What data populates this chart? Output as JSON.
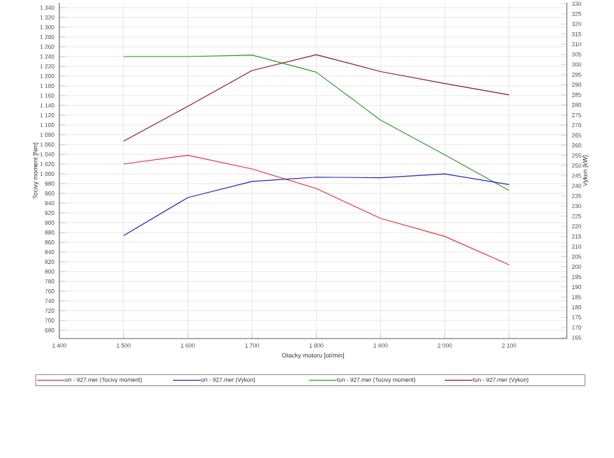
{
  "chart_data": {
    "type": "line",
    "xlabel": "Otacky motoru [ot/min]",
    "ylabel": "Tocivy moment [Nm]",
    "y2label": "Vykon [kW]",
    "x": [
      1500,
      1600,
      1700,
      1800,
      1900,
      2000,
      2100
    ],
    "series": [
      {
        "name": "ori - 927.mer  (Tocivy moment)",
        "color": "#e8303a",
        "values": [
          1020,
          1038,
          1010,
          970,
          909,
          872,
          814
        ]
      },
      {
        "name": "ori - 927.mer  (Vykon)",
        "color": "#2020d0",
        "axis": "y2",
        "values": [
          215.4,
          234.2,
          242.2,
          244.3,
          244,
          245.9,
          240.6
        ]
      },
      {
        "name": "tun - 927.mer  (Tocivy moment)",
        "color": "#2a9a2a",
        "values": [
          1240,
          1240,
          1243,
          1208,
          1110,
          1039,
          966
        ]
      },
      {
        "name": "tun - 927.mer  (Vykon)",
        "color": "#8b1a1a",
        "axis": "y2",
        "values": [
          262.1,
          279.3,
          297,
          304.8,
          296.5,
          290.6,
          285
        ]
      }
    ],
    "xlim": [
      1400,
      2190
    ],
    "xticks": [
      {
        "value": 1400,
        "label": "1 400"
      },
      {
        "value": 1500,
        "label": "1 500"
      },
      {
        "value": 1600,
        "label": "1 600"
      },
      {
        "value": 1700,
        "label": "1 700"
      },
      {
        "value": 1800,
        "label": "1 800"
      },
      {
        "value": 1900,
        "label": "1 900"
      },
      {
        "value": 2000,
        "label": "2 000"
      },
      {
        "value": 2100,
        "label": "2 100"
      }
    ],
    "ylim": [
      663,
      1350
    ],
    "yticks": [
      680,
      700,
      720,
      740,
      760,
      780,
      800,
      820,
      840,
      860,
      880,
      900,
      920,
      940,
      960,
      980,
      {
        "value": 1000,
        "label": "1 000"
      },
      {
        "value": 1020,
        "label": "1 020"
      },
      {
        "value": 1040,
        "label": "1 040"
      },
      {
        "value": 1060,
        "label": "1 060"
      },
      {
        "value": 1080,
        "label": "1 080"
      },
      {
        "value": 1100,
        "label": "1 100"
      },
      {
        "value": 1120,
        "label": "1 120"
      },
      {
        "value": 1140,
        "label": "1 140"
      },
      {
        "value": 1160,
        "label": "1 160"
      },
      {
        "value": 1180,
        "label": "1 180"
      },
      {
        "value": 1200,
        "label": "1 200"
      },
      {
        "value": 1220,
        "label": "1 220"
      },
      {
        "value": 1240,
        "label": "1 240"
      },
      {
        "value": 1260,
        "label": "1 260"
      },
      {
        "value": 1280,
        "label": "1 280"
      },
      {
        "value": 1300,
        "label": "1 300"
      },
      {
        "value": 1320,
        "label": "1 320"
      },
      {
        "value": 1340,
        "label": "1 340"
      }
    ],
    "y2lim": [
      164.5,
      330.5
    ],
    "y2ticks": [
      165,
      170,
      175,
      180,
      185,
      190,
      195,
      200,
      205,
      210,
      215,
      220,
      225,
      230,
      235,
      240,
      245,
      250,
      255,
      260,
      265,
      270,
      275,
      280,
      285,
      290,
      295,
      300,
      305,
      310,
      315,
      320,
      325,
      330
    ],
    "grid": true,
    "legend": "bottom",
    "marker": "none",
    "line_style": "solid"
  }
}
